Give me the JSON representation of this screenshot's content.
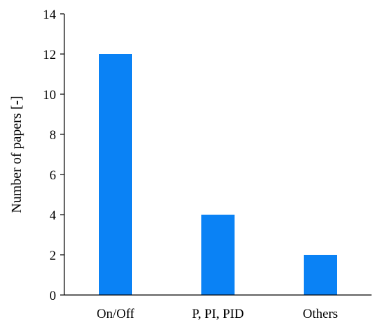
{
  "chart_data": {
    "type": "bar",
    "title": "",
    "xlabel": "",
    "ylabel": "Number of papers [-]",
    "categories": [
      "On/Off",
      "P, PI, PID",
      "Others"
    ],
    "values": [
      12,
      4,
      2
    ],
    "ylim": [
      0,
      14
    ],
    "yticks": [
      0,
      2,
      4,
      6,
      8,
      10,
      12,
      14
    ],
    "grid": false,
    "legend": "none",
    "bar_color": "#0a82f5",
    "axis_color": "#000000"
  }
}
